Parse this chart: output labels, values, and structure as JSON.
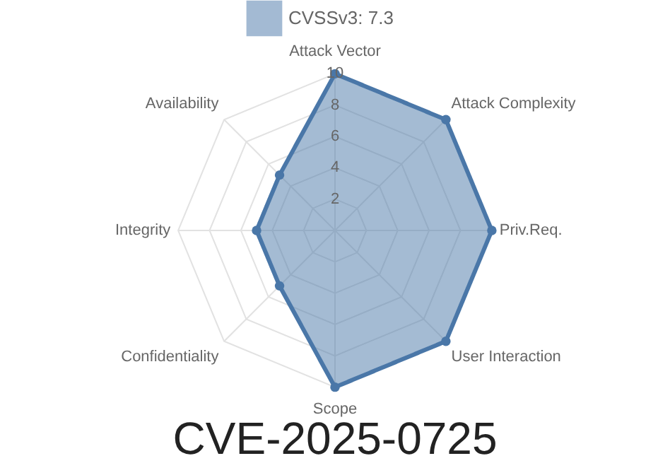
{
  "chart_data": {
    "type": "radar",
    "title": "CVE-2025-0725",
    "categories": [
      "Attack Vector",
      "Attack Complexity",
      "Priv.Req.",
      "User Interaction",
      "Scope",
      "Confidentiality",
      "Integrity",
      "Availability"
    ],
    "series": [
      {
        "name": "CVSSv3: 7.3",
        "color": "#4a77a8",
        "values": [
          10,
          10,
          10,
          10,
          10,
          5,
          5,
          5
        ]
      }
    ],
    "ylim": [
      0,
      10
    ],
    "yticks": [
      2,
      4,
      6,
      8,
      10
    ],
    "grid": true,
    "legend": "top",
    "marker": "circle"
  }
}
